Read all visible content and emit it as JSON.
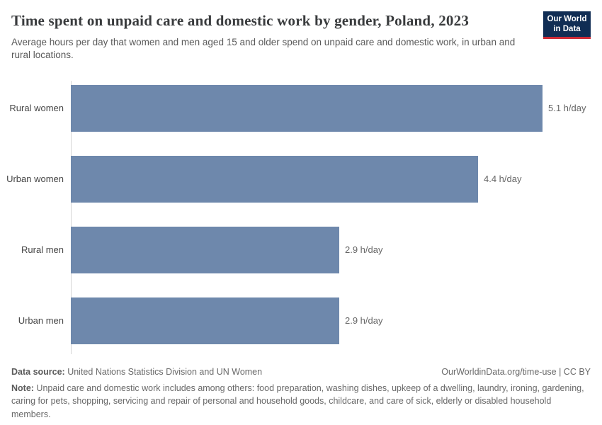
{
  "header": {
    "title": "Time spent on unpaid care and domestic work by gender, Poland, 2023",
    "subtitle": "Average hours per day that women and men aged 15 and older spend on unpaid care and domestic work, in urban and rural locations.",
    "logo": {
      "line1": "Our World",
      "line2": "in Data",
      "bg_color": "#102d54",
      "accent_color": "#ce2b37"
    }
  },
  "chart_data": {
    "type": "bar",
    "orientation": "horizontal",
    "title": "Time spent on unpaid care and domestic work by gender, Poland, 2023",
    "categories": [
      "Rural women",
      "Urban women",
      "Rural men",
      "Urban men"
    ],
    "values": [
      5.1,
      4.4,
      2.9,
      2.9
    ],
    "value_labels": [
      "5.1 h/day",
      "4.4 h/day",
      "2.9 h/day",
      "2.9 h/day"
    ],
    "unit": "h/day",
    "xlim": [
      0,
      5.1
    ],
    "bar_color": "#6E88AC",
    "grid": false,
    "legend": false,
    "xlabel": "",
    "ylabel": ""
  },
  "footer": {
    "datasource_label": "Data source:",
    "datasource_value": " United Nations Statistics Division and UN Women",
    "attribution": "OurWorldinData.org/time-use | CC BY",
    "note_label": "Note:",
    "note_text": " Unpaid care and domestic work includes among others: food preparation, washing dishes, upkeep of a dwelling, laundry, ironing, gardening, caring for pets, shopping, servicing and repair of personal and household goods, childcare, and care of sick, elderly or disabled household members."
  }
}
